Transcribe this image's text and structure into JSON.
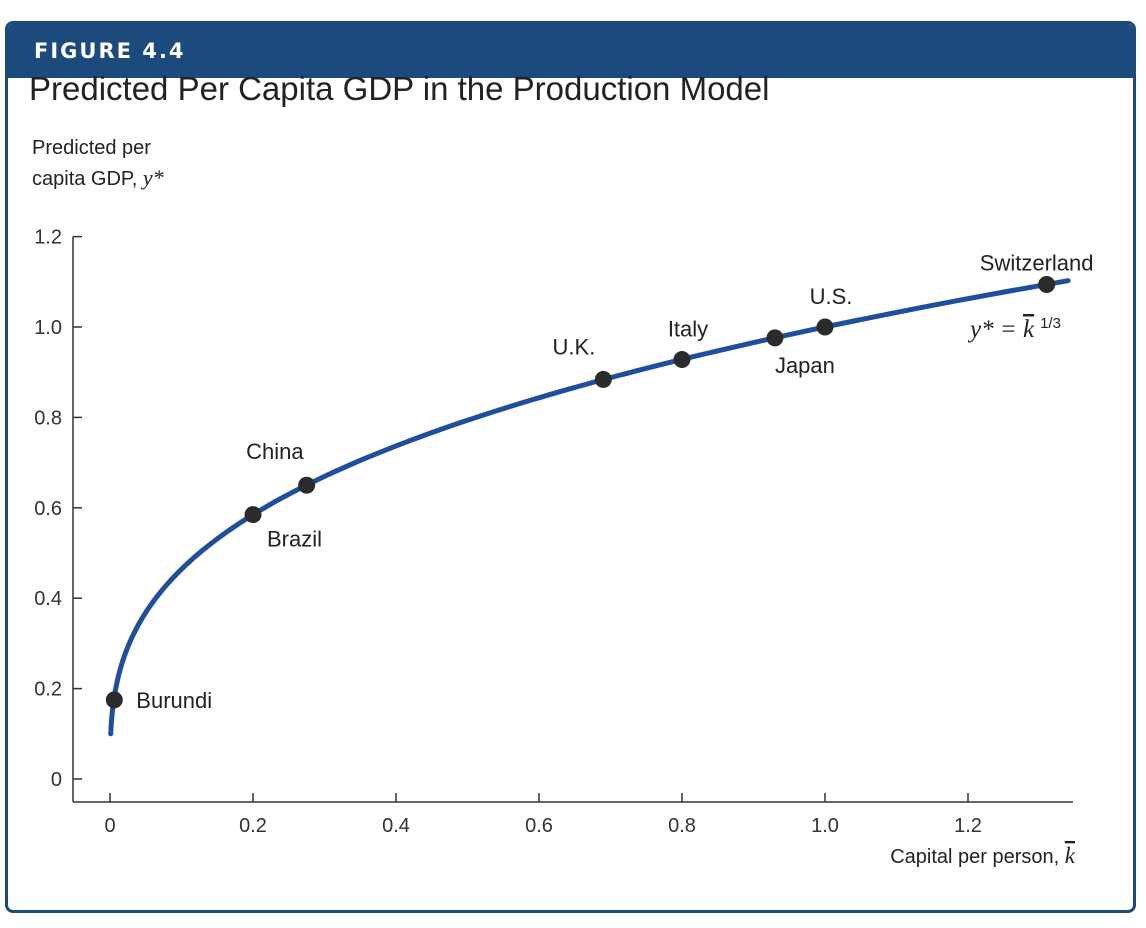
{
  "figure": {
    "label": "FIGURE 4.4"
  },
  "chart_data": {
    "type": "line",
    "title": "Predicted Per Capita GDP in the Production Model",
    "ylabel": "Predicted per capita GDP, y*",
    "ylabel_lines": [
      "Predicted per",
      "capita GDP, "
    ],
    "ylabel_var": "y*",
    "xlabel": "Capital per person, k",
    "xlabel_text": "Capital per person, ",
    "xlabel_var": "k",
    "xlim": [
      -0.05,
      1.35
    ],
    "ylim": [
      0,
      1.2
    ],
    "x_ticks": [
      0,
      0.2,
      0.4,
      0.6,
      0.8,
      1.0,
      1.2
    ],
    "x_tick_labels": [
      "0",
      "0.2",
      "0.4",
      "0.6",
      "0.8",
      "1.0",
      "1.2"
    ],
    "y_ticks": [
      0,
      0.2,
      0.4,
      0.6,
      0.8,
      1.0,
      1.2
    ],
    "y_tick_labels": [
      "0",
      "0.2",
      "0.4",
      "0.6",
      "0.8",
      "1.0",
      "1.2"
    ],
    "grid": false,
    "curve": {
      "equation": "y* = k^(1/3)",
      "x_range": [
        0.001,
        1.34
      ],
      "color": "#1f4e9e"
    },
    "equation_label": {
      "lhs": "y* = ",
      "var": "k",
      "exp": "1/3"
    },
    "point_color": "#2b2b2b",
    "points": [
      {
        "country": "Burundi",
        "x": 0.006,
        "y": 0.175,
        "label_pos": "right"
      },
      {
        "country": "Brazil",
        "x": 0.2,
        "y": 0.585,
        "label_pos": "below-right"
      },
      {
        "country": "China",
        "x": 0.275,
        "y": 0.65,
        "label_pos": "above-left"
      },
      {
        "country": "U.K.",
        "x": 0.69,
        "y": 0.884,
        "label_pos": "above-left"
      },
      {
        "country": "Italy",
        "x": 0.8,
        "y": 0.928,
        "label_pos": "above"
      },
      {
        "country": "Japan",
        "x": 0.93,
        "y": 0.976,
        "label_pos": "below-right"
      },
      {
        "country": "U.S.",
        "x": 1.0,
        "y": 1.0,
        "label_pos": "above"
      },
      {
        "country": "Switzerland",
        "x": 1.31,
        "y": 1.094,
        "label_pos": "above"
      }
    ]
  }
}
